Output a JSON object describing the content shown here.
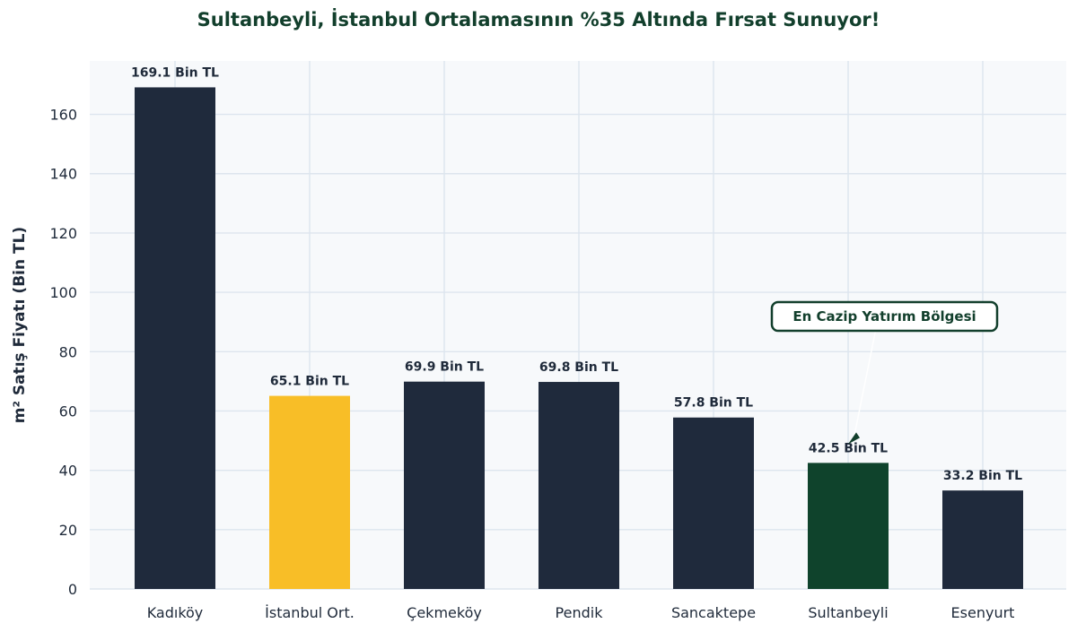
{
  "chart_data": {
    "type": "bar",
    "title": "Sultanbeyli, İstanbul Ortalamasının %35 Altında Fırsat Sunuyor!",
    "xlabel": "",
    "ylabel": "m² Satış Fiyatı (Bin TL)",
    "categories": [
      "Kadıköy",
      "İstanbul Ort.",
      "Çekmeköy",
      "Pendik",
      "Sancaktepe",
      "Sultanbeyli",
      "Esenyurt"
    ],
    "values": [
      169.1,
      65.1,
      69.9,
      69.8,
      57.8,
      42.5,
      33.2
    ],
    "data_labels": [
      "169.1 Bin TL",
      "65.1 Bin TL",
      "69.9 Bin TL",
      "69.8 Bin TL",
      "57.8 Bin TL",
      "42.5 Bin TL",
      "33.2 Bin TL"
    ],
    "bar_colors": [
      "#1f2a3c",
      "#f8be27",
      "#1f2a3c",
      "#1f2a3c",
      "#1f2a3c",
      "#0f432c",
      "#1f2a3c"
    ],
    "ylim": [
      0,
      178
    ],
    "yticks": [
      0,
      20,
      40,
      60,
      80,
      100,
      120,
      140,
      160
    ],
    "grid": true,
    "annotation": {
      "text": "En Cazip Yatırım Bölgesi",
      "target_category": "Sultanbeyli",
      "color": "#123f2c"
    },
    "colors": {
      "plot_background": "#f7f9fb",
      "grid": "#dde5ee",
      "title": "#123f2c",
      "text": "#1f2a3a"
    }
  }
}
